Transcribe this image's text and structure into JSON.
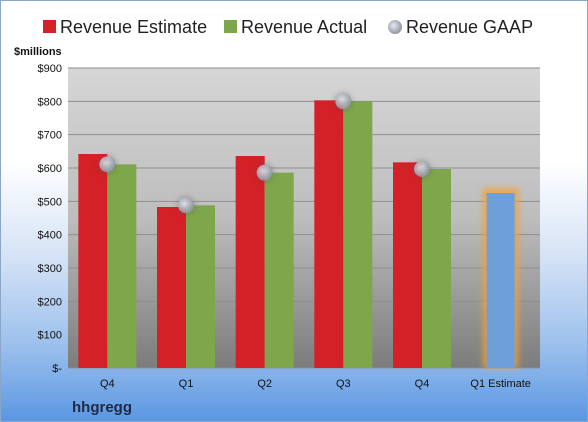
{
  "chart_data": {
    "type": "bar",
    "categories": [
      "Q4",
      "Q1",
      "Q2",
      "Q3",
      "Q4",
      "Q1 Estimate"
    ],
    "series": [
      {
        "name": "Revenue Estimate",
        "values": [
          642,
          483,
          636,
          803,
          617,
          null
        ],
        "color": "#d42027"
      },
      {
        "name": "Revenue Actual",
        "values": [
          611,
          488,
          586,
          800,
          597,
          null
        ],
        "color": "#7ea64b"
      },
      {
        "name": "Revenue GAAP",
        "values": [
          611,
          488,
          586,
          800,
          597,
          null
        ],
        "color": "#b8bec8"
      },
      {
        "name": "",
        "values": [
          null,
          null,
          null,
          null,
          null,
          525
        ],
        "color": "#6f9fd8",
        "glow": "#f3a033"
      }
    ],
    "ylabel": "$millions",
    "ylim": [
      0,
      900
    ],
    "yticks": [
      0,
      100,
      200,
      300,
      400,
      500,
      600,
      700,
      800,
      900
    ],
    "ytick_labels": [
      "$-",
      "$100",
      "$200",
      "$300",
      "$400",
      "$500",
      "$600",
      "$700",
      "$800",
      "$900"
    ],
    "legend_position": "top",
    "grid": true
  },
  "company": "hhgregg"
}
